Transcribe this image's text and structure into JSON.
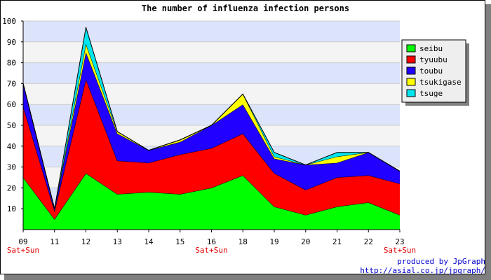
{
  "chart_data": {
    "type": "area",
    "stacked": true,
    "title": "The number of influenza infection persons",
    "categories": [
      "09",
      "11",
      "12",
      "13",
      "14",
      "15",
      "16",
      "18",
      "19",
      "20",
      "21",
      "22",
      "23"
    ],
    "sublabels": [
      "Sat+Sun",
      "",
      "",
      "",
      "",
      "",
      "Sat+Sun",
      "",
      "",
      "",
      "",
      "",
      "Sat+Sun"
    ],
    "ylim": [
      0,
      100
    ],
    "yticks": [
      10,
      20,
      30,
      40,
      50,
      60,
      70,
      80,
      90,
      100
    ],
    "grid": true,
    "legend_position": "right",
    "series": [
      {
        "name": "seibu",
        "color": "#00ff00",
        "values": [
          25,
          5,
          27,
          17,
          18,
          17,
          20,
          26,
          11,
          7,
          11,
          13,
          7
        ]
      },
      {
        "name": "tyuubu",
        "color": "#ff0000",
        "values": [
          34,
          4,
          45,
          16,
          14,
          19,
          19,
          20,
          16,
          12,
          14,
          13,
          15
        ]
      },
      {
        "name": "toubu",
        "color": "#2200ff",
        "values": [
          11,
          1,
          13,
          13,
          6,
          6,
          11,
          14,
          7,
          12,
          7,
          11,
          6
        ]
      },
      {
        "name": "tsukigase",
        "color": "#ffff00",
        "values": [
          0,
          0,
          4,
          1,
          0,
          1,
          0,
          5,
          1,
          0,
          3,
          0,
          0
        ]
      },
      {
        "name": "tsuge",
        "color": "#00e5ee",
        "values": [
          0,
          0,
          8,
          0,
          0,
          0,
          0,
          0,
          2,
          0,
          2,
          0,
          0
        ]
      }
    ]
  },
  "credit": {
    "line1": "produced by JpGraph",
    "line2": "http://asial.co.jp/jpgraph/"
  }
}
